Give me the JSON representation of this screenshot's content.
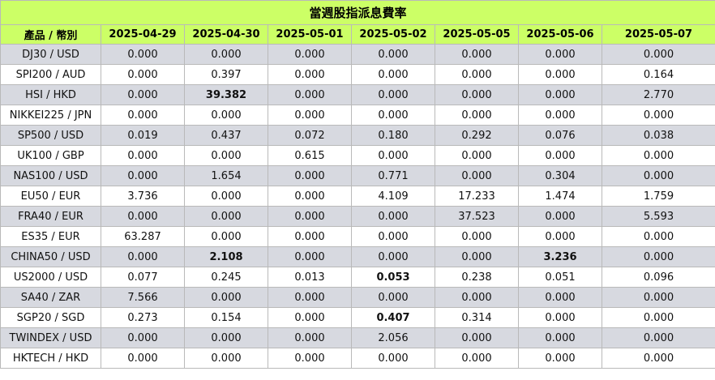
{
  "title": "當週股指派息費率",
  "header": {
    "product": "產品 / 幣別",
    "dates": [
      "2025-04-29",
      "2025-04-30",
      "2025-05-01",
      "2025-05-02",
      "2025-05-05",
      "2025-05-06",
      "2025-05-07"
    ]
  },
  "rows": [
    {
      "product": "DJ30 / USD",
      "values": [
        "0.000",
        "0.000",
        "0.000",
        "0.000",
        "0.000",
        "0.000",
        "0.000"
      ],
      "bold": []
    },
    {
      "product": "SPI200 / AUD",
      "values": [
        "0.000",
        "0.397",
        "0.000",
        "0.000",
        "0.000",
        "0.000",
        "0.164"
      ],
      "bold": []
    },
    {
      "product": "HSI / HKD",
      "values": [
        "0.000",
        "39.382",
        "0.000",
        "0.000",
        "0.000",
        "0.000",
        "2.770"
      ],
      "bold": [
        1
      ]
    },
    {
      "product": "NIKKEI225 / JPN",
      "values": [
        "0.000",
        "0.000",
        "0.000",
        "0.000",
        "0.000",
        "0.000",
        "0.000"
      ],
      "bold": []
    },
    {
      "product": "SP500 / USD",
      "values": [
        "0.019",
        "0.437",
        "0.072",
        "0.180",
        "0.292",
        "0.076",
        "0.038"
      ],
      "bold": []
    },
    {
      "product": "UK100 / GBP",
      "values": [
        "0.000",
        "0.000",
        "0.615",
        "0.000",
        "0.000",
        "0.000",
        "0.000"
      ],
      "bold": []
    },
    {
      "product": "NAS100 / USD",
      "values": [
        "0.000",
        "1.654",
        "0.000",
        "0.771",
        "0.000",
        "0.304",
        "0.000"
      ],
      "bold": []
    },
    {
      "product": "EU50 / EUR",
      "values": [
        "3.736",
        "0.000",
        "0.000",
        "4.109",
        "17.233",
        "1.474",
        "1.759"
      ],
      "bold": []
    },
    {
      "product": "FRA40 / EUR",
      "values": [
        "0.000",
        "0.000",
        "0.000",
        "0.000",
        "37.523",
        "0.000",
        "5.593"
      ],
      "bold": []
    },
    {
      "product": "ES35 / EUR",
      "values": [
        "63.287",
        "0.000",
        "0.000",
        "0.000",
        "0.000",
        "0.000",
        "0.000"
      ],
      "bold": []
    },
    {
      "product": "CHINA50 / USD",
      "values": [
        "0.000",
        "2.108",
        "0.000",
        "0.000",
        "0.000",
        "3.236",
        "0.000"
      ],
      "bold": [
        1,
        5
      ]
    },
    {
      "product": "US2000 / USD",
      "values": [
        "0.077",
        "0.245",
        "0.013",
        "0.053",
        "0.238",
        "0.051",
        "0.096"
      ],
      "bold": [
        3
      ]
    },
    {
      "product": "SA40 / ZAR",
      "values": [
        "7.566",
        "0.000",
        "0.000",
        "0.000",
        "0.000",
        "0.000",
        "0.000"
      ],
      "bold": []
    },
    {
      "product": "SGP20 / SGD",
      "values": [
        "0.273",
        "0.154",
        "0.000",
        "0.407",
        "0.314",
        "0.000",
        "0.000"
      ],
      "bold": [
        3
      ]
    },
    {
      "product": "TWINDEX / USD",
      "values": [
        "0.000",
        "0.000",
        "0.000",
        "2.056",
        "0.000",
        "0.000",
        "0.000"
      ],
      "bold": []
    },
    {
      "product": "HKTECH / HKD",
      "values": [
        "0.000",
        "0.000",
        "0.000",
        "0.000",
        "0.000",
        "0.000",
        "0.000"
      ],
      "bold": []
    }
  ]
}
